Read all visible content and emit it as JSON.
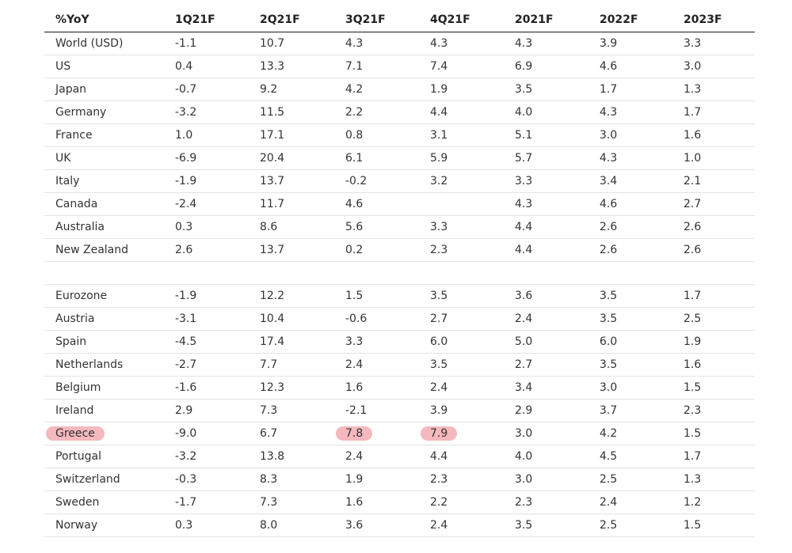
{
  "chart_data": {
    "type": "table",
    "columns": [
      "%YoY",
      "1Q21F",
      "2Q21F",
      "3Q21F",
      "4Q21F",
      "2021F",
      "2022F",
      "2023F"
    ],
    "rows": [
      {
        "country": "World (USD)",
        "values": [
          "-1.1",
          "10.7",
          "4.3",
          "4.3",
          "4.3",
          "3.9",
          "3.3"
        ]
      },
      {
        "country": "US",
        "values": [
          "0.4",
          "13.3",
          "7.1",
          "7.4",
          "6.9",
          "4.6",
          "3.0"
        ]
      },
      {
        "country": "Japan",
        "values": [
          "-0.7",
          "9.2",
          "4.2",
          "1.9",
          "3.5",
          "1.7",
          "1.3"
        ]
      },
      {
        "country": "Germany",
        "values": [
          "-3.2",
          "11.5",
          "2.2",
          "4.4",
          "4.0",
          "4.3",
          "1.7"
        ]
      },
      {
        "country": "France",
        "values": [
          "1.0",
          "17.1",
          "0.8",
          "3.1",
          "5.1",
          "3.0",
          "1.6"
        ]
      },
      {
        "country": "UK",
        "values": [
          "-6.9",
          "20.4",
          "6.1",
          "5.9",
          "5.7",
          "4.3",
          "1.0"
        ]
      },
      {
        "country": "Italy",
        "values": [
          "-1.9",
          "13.7",
          "-0.2",
          "3.2",
          "3.3",
          "3.4",
          "2.1"
        ]
      },
      {
        "country": "Canada",
        "values": [
          "-2.4",
          "11.7",
          "4.6",
          "",
          "4.3",
          "4.6",
          "2.7"
        ]
      },
      {
        "country": "Australia",
        "values": [
          "0.3",
          "8.6",
          "5.6",
          "3.3",
          "4.4",
          "2.6",
          "2.6"
        ]
      },
      {
        "country": "New Zealand",
        "values": [
          "2.6",
          "13.7",
          "0.2",
          "2.3",
          "4.4",
          "2.6",
          "2.6"
        ]
      },
      {
        "country": "",
        "values": [
          "",
          "",
          "",
          "",
          "",
          "",
          ""
        ]
      },
      {
        "country": "Eurozone",
        "values": [
          "-1.9",
          "12.2",
          "1.5",
          "3.5",
          "3.6",
          "3.5",
          "1.7"
        ]
      },
      {
        "country": "Austria",
        "values": [
          "-3.1",
          "10.4",
          "-0.6",
          "2.7",
          "2.4",
          "3.5",
          "2.5"
        ]
      },
      {
        "country": "Spain",
        "values": [
          "-4.5",
          "17.4",
          "3.3",
          "6.0",
          "5.0",
          "6.0",
          "1.9"
        ]
      },
      {
        "country": "Netherlands",
        "values": [
          "-2.7",
          "7.7",
          "2.4",
          "3.5",
          "2.7",
          "3.5",
          "1.6"
        ]
      },
      {
        "country": "Belgium",
        "values": [
          "-1.6",
          "12.3",
          "1.6",
          "2.4",
          "3.4",
          "3.0",
          "1.5"
        ]
      },
      {
        "country": "Ireland",
        "values": [
          "2.9",
          "7.3",
          "-2.1",
          "3.9",
          "2.9",
          "3.7",
          "2.3"
        ]
      },
      {
        "country": "Greece",
        "values": [
          "-9.0",
          "6.7",
          "7.8",
          "7.9",
          "3.0",
          "4.2",
          "1.5"
        ]
      },
      {
        "country": "Portugal",
        "values": [
          "-3.2",
          "13.8",
          "2.4",
          "4.4",
          "4.0",
          "4.5",
          "1.7"
        ]
      },
      {
        "country": "Switzerland",
        "values": [
          "-0.3",
          "8.3",
          "1.9",
          "2.3",
          "3.0",
          "2.5",
          "1.3"
        ]
      },
      {
        "country": "Sweden",
        "values": [
          "-1.7",
          "7.3",
          "1.6",
          "2.2",
          "2.3",
          "2.4",
          "1.2"
        ]
      },
      {
        "country": "Norway",
        "values": [
          "0.3",
          "8.0",
          "3.6",
          "2.4",
          "3.5",
          "2.5",
          "1.5"
        ]
      }
    ],
    "highlights": [
      {
        "row": "Greece",
        "column": "%YoY"
      },
      {
        "row": "Greece",
        "column": "3Q21F"
      },
      {
        "row": "Greece",
        "column": "4Q21F"
      }
    ],
    "highlight_color": "#f4b8bd"
  }
}
